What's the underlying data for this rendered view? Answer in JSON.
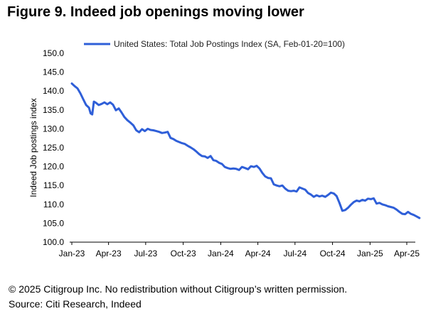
{
  "figure": {
    "title": "Figure 9. Indeed job openings moving lower",
    "copyright": "© 2025 Citigroup Inc. No redistribution without Citigroup’s written permission.",
    "source": "Source: Citi Research, Indeed"
  },
  "chart_data": {
    "type": "line",
    "title": "Figure 9. Indeed job openings moving lower",
    "xlabel": "",
    "ylabel": "Indeed Job postings index",
    "ylim": [
      100,
      150
    ],
    "yticks": [
      "150.0",
      "145.0",
      "140.0",
      "135.0",
      "130.0",
      "125.0",
      "120.0",
      "115.0",
      "110.0",
      "105.0",
      "100.0"
    ],
    "xticks": [
      "Jan-23",
      "Apr-23",
      "Jul-23",
      "Oct-23",
      "Jan-24",
      "Apr-24",
      "Jul-24",
      "Oct-24",
      "Jan-25",
      "Apr-25"
    ],
    "grid": false,
    "legend_position": "top",
    "series": [
      {
        "name": "United States: Total Job Postings Index (SA, Feb-01-20=100)",
        "color": "#2f5fd8",
        "points": [
          [
            "2023-01-01",
            142.0
          ],
          [
            "2023-01-08",
            141.3
          ],
          [
            "2023-01-15",
            140.7
          ],
          [
            "2023-01-22",
            139.4
          ],
          [
            "2023-01-29",
            137.8
          ],
          [
            "2023-02-05",
            136.3
          ],
          [
            "2023-02-12",
            135.6
          ],
          [
            "2023-02-16",
            134.1
          ],
          [
            "2023-02-20",
            133.8
          ],
          [
            "2023-02-24",
            137.2
          ],
          [
            "2023-03-01",
            136.9
          ],
          [
            "2023-03-08",
            136.3
          ],
          [
            "2023-03-15",
            136.6
          ],
          [
            "2023-03-22",
            137.0
          ],
          [
            "2023-03-29",
            136.5
          ],
          [
            "2023-04-05",
            137.0
          ],
          [
            "2023-04-12",
            136.4
          ],
          [
            "2023-04-19",
            134.9
          ],
          [
            "2023-04-26",
            135.4
          ],
          [
            "2023-05-03",
            134.3
          ],
          [
            "2023-05-10",
            133.1
          ],
          [
            "2023-05-17",
            132.3
          ],
          [
            "2023-05-24",
            131.7
          ],
          [
            "2023-06-01",
            130.9
          ],
          [
            "2023-06-08",
            129.6
          ],
          [
            "2023-06-15",
            129.1
          ],
          [
            "2023-06-22",
            129.9
          ],
          [
            "2023-06-29",
            129.4
          ],
          [
            "2023-07-06",
            130.0
          ],
          [
            "2023-07-13",
            129.7
          ],
          [
            "2023-07-20",
            129.6
          ],
          [
            "2023-07-27",
            129.4
          ],
          [
            "2023-08-03",
            129.2
          ],
          [
            "2023-08-10",
            128.9
          ],
          [
            "2023-08-17",
            129.0
          ],
          [
            "2023-08-24",
            129.2
          ],
          [
            "2023-08-31",
            127.6
          ],
          [
            "2023-09-07",
            127.3
          ],
          [
            "2023-09-14",
            126.8
          ],
          [
            "2023-09-21",
            126.5
          ],
          [
            "2023-09-28",
            126.2
          ],
          [
            "2023-10-05",
            126.0
          ],
          [
            "2023-10-12",
            125.5
          ],
          [
            "2023-10-19",
            125.1
          ],
          [
            "2023-10-26",
            124.6
          ],
          [
            "2023-11-02",
            124.0
          ],
          [
            "2023-11-09",
            123.3
          ],
          [
            "2023-11-16",
            122.8
          ],
          [
            "2023-11-23",
            122.7
          ],
          [
            "2023-11-30",
            122.3
          ],
          [
            "2023-12-07",
            122.8
          ],
          [
            "2023-12-14",
            121.7
          ],
          [
            "2023-12-21",
            121.5
          ],
          [
            "2023-12-28",
            121.0
          ],
          [
            "2024-01-04",
            120.7
          ],
          [
            "2024-01-11",
            119.9
          ],
          [
            "2024-01-18",
            119.6
          ],
          [
            "2024-01-25",
            119.4
          ],
          [
            "2024-02-01",
            119.5
          ],
          [
            "2024-02-08",
            119.4
          ],
          [
            "2024-02-15",
            119.1
          ],
          [
            "2024-02-22",
            119.9
          ],
          [
            "2024-03-01",
            119.6
          ],
          [
            "2024-03-08",
            119.3
          ],
          [
            "2024-03-15",
            120.1
          ],
          [
            "2024-03-22",
            119.9
          ],
          [
            "2024-03-29",
            120.2
          ],
          [
            "2024-04-05",
            119.5
          ],
          [
            "2024-04-12",
            118.3
          ],
          [
            "2024-04-19",
            117.4
          ],
          [
            "2024-04-26",
            117.0
          ],
          [
            "2024-05-03",
            116.9
          ],
          [
            "2024-05-10",
            115.3
          ],
          [
            "2024-05-17",
            115.0
          ],
          [
            "2024-05-24",
            114.8
          ],
          [
            "2024-05-31",
            115.0
          ],
          [
            "2024-06-07",
            114.2
          ],
          [
            "2024-06-14",
            113.6
          ],
          [
            "2024-06-21",
            113.5
          ],
          [
            "2024-06-28",
            113.6
          ],
          [
            "2024-07-05",
            113.4
          ],
          [
            "2024-07-12",
            114.5
          ],
          [
            "2024-07-19",
            114.2
          ],
          [
            "2024-07-26",
            113.9
          ],
          [
            "2024-08-02",
            113.0
          ],
          [
            "2024-08-09",
            112.6
          ],
          [
            "2024-08-16",
            112.0
          ],
          [
            "2024-08-23",
            112.4
          ],
          [
            "2024-08-30",
            112.1
          ],
          [
            "2024-09-06",
            112.3
          ],
          [
            "2024-09-13",
            112.0
          ],
          [
            "2024-09-20",
            112.5
          ],
          [
            "2024-09-27",
            113.1
          ],
          [
            "2024-10-04",
            112.9
          ],
          [
            "2024-10-11",
            112.2
          ],
          [
            "2024-10-18",
            110.4
          ],
          [
            "2024-10-25",
            108.3
          ],
          [
            "2024-11-01",
            108.5
          ],
          [
            "2024-11-08",
            109.1
          ],
          [
            "2024-11-15",
            109.9
          ],
          [
            "2024-11-22",
            110.6
          ],
          [
            "2024-11-29",
            111.0
          ],
          [
            "2024-12-06",
            110.8
          ],
          [
            "2024-12-13",
            111.2
          ],
          [
            "2024-12-20",
            111.0
          ],
          [
            "2024-12-27",
            111.5
          ],
          [
            "2025-01-03",
            111.4
          ],
          [
            "2025-01-10",
            111.6
          ],
          [
            "2025-01-17",
            110.2
          ],
          [
            "2025-01-24",
            110.4
          ],
          [
            "2025-01-31",
            110.0
          ],
          [
            "2025-02-07",
            109.8
          ],
          [
            "2025-02-14",
            109.5
          ],
          [
            "2025-02-21",
            109.3
          ],
          [
            "2025-02-28",
            109.1
          ],
          [
            "2025-03-07",
            108.6
          ],
          [
            "2025-03-14",
            108.0
          ],
          [
            "2025-03-21",
            107.5
          ],
          [
            "2025-03-28",
            107.4
          ],
          [
            "2025-04-04",
            108.0
          ],
          [
            "2025-04-11",
            107.5
          ],
          [
            "2025-04-18",
            107.2
          ],
          [
            "2025-04-25",
            106.8
          ],
          [
            "2025-05-02",
            106.4
          ]
        ]
      }
    ]
  }
}
